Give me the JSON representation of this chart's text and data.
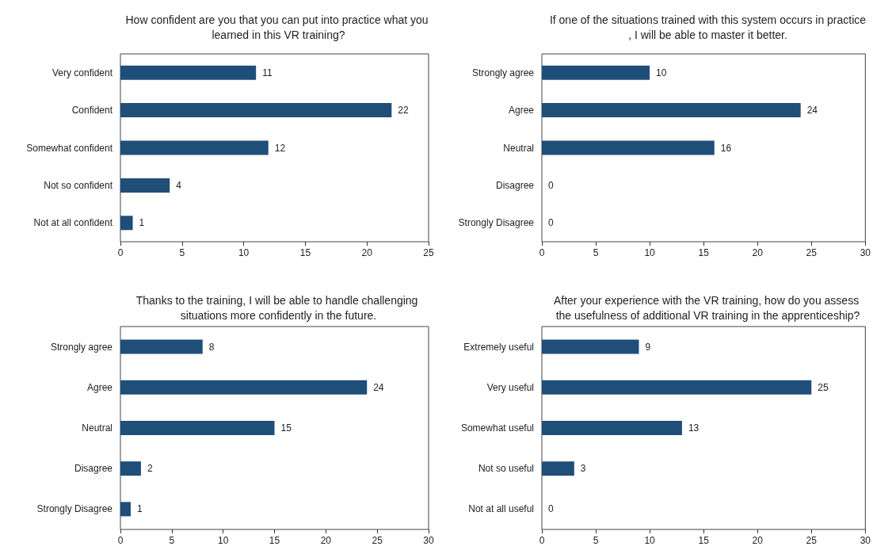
{
  "chart_data": [
    {
      "type": "bar",
      "orientation": "horizontal",
      "title": "How confident are you that you can put into practice what you learned in this VR training?",
      "categories": [
        "Very confident",
        "Confident",
        "Somewhat confident",
        "Not so confident",
        "Not at all confident"
      ],
      "values": [
        11,
        22,
        12,
        4,
        1
      ],
      "color": "#1f4e79",
      "xlim": [
        0,
        25
      ],
      "xticks": [
        0,
        5,
        10,
        15,
        20,
        25
      ],
      "data_labels": true,
      "grid": false
    },
    {
      "type": "bar",
      "orientation": "horizontal",
      "title": "If one of the situations trained with this system occurs in practice, I will be able to master it better.",
      "categories": [
        "Strongly agree",
        "Agree",
        "Neutral",
        "Disagree",
        "Strongly Disagree"
      ],
      "values": [
        10,
        24,
        16,
        0,
        0
      ],
      "color": "#1f4e79",
      "xlim": [
        0,
        30
      ],
      "xticks": [
        0,
        5,
        10,
        15,
        20,
        25,
        30
      ],
      "data_labels": true,
      "grid": false
    },
    {
      "type": "bar",
      "orientation": "horizontal",
      "title": "Thanks to the training, I will be able to handle challenging situations more confidently in the future.",
      "categories": [
        "Strongly agree",
        "Agree",
        "Neutral",
        "Disagree",
        "Strongly Disagree"
      ],
      "values": [
        8,
        24,
        15,
        2,
        1
      ],
      "color": "#1f4e79",
      "xlim": [
        0,
        30
      ],
      "xticks": [
        0,
        5,
        10,
        15,
        20,
        25,
        30
      ],
      "data_labels": true,
      "grid": false
    },
    {
      "type": "bar",
      "orientation": "horizontal",
      "title": "After your experience with the VR training, how do you assess the usefulness of additional VR training in the apprenticeship?",
      "categories": [
        "Extremely useful",
        "Very useful",
        "Somewhat useful",
        "Not so useful",
        "Not at all useful"
      ],
      "values": [
        9,
        25,
        13,
        3,
        0
      ],
      "color": "#1f4e79",
      "xlim": [
        0,
        30
      ],
      "xticks": [
        0,
        5,
        10,
        15,
        20,
        25,
        30
      ],
      "data_labels": true,
      "grid": false
    }
  ]
}
